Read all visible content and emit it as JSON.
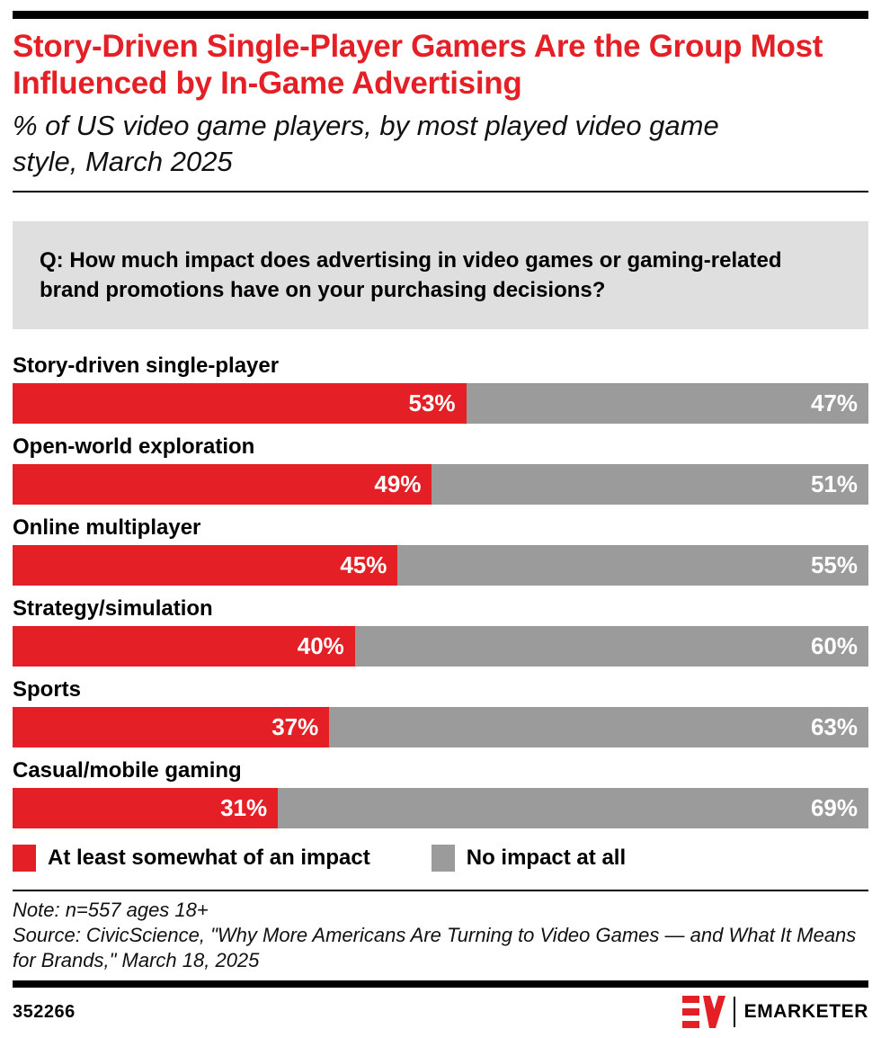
{
  "colors": {
    "accent_red": "#e41f26",
    "bar_gray": "#9b9b9b",
    "question_box_bg": "#dfdfdf",
    "text_black": "#000000"
  },
  "header": {
    "title": "Story-Driven Single-Player Gamers Are the Group Most Influenced by In-Game Advertising",
    "subtitle": "% of US video game players, by most played video game style, March 2025"
  },
  "question": "Q: How much impact does advertising in video games or gaming-related brand promotions have on your purchasing decisions?",
  "chart_data": {
    "type": "bar",
    "orientation": "horizontal",
    "stacked": true,
    "value_suffix": "%",
    "xlim": [
      0,
      100
    ],
    "grid": false,
    "legend_position": "bottom",
    "categories": [
      "Story-driven single-player",
      "Open-world exploration",
      "Online multiplayer",
      "Strategy/simulation",
      "Sports",
      "Casual/mobile gaming"
    ],
    "series": [
      {
        "name": "At least somewhat of an impact",
        "color": "#e41f26",
        "values": [
          53,
          49,
          45,
          40,
          37,
          31
        ]
      },
      {
        "name": "No impact at all",
        "color": "#9b9b9b",
        "values": [
          47,
          51,
          55,
          60,
          63,
          69
        ]
      }
    ]
  },
  "legend": [
    {
      "label": "At least somewhat of an impact",
      "color": "#e41f26"
    },
    {
      "label": "No impact at all",
      "color": "#9b9b9b"
    }
  ],
  "footnotes": {
    "note": "Note: n=557 ages 18+",
    "source": "Source: CivicScience, \"Why More Americans Are Turning to Video Games — and What It Means for Brands,\" March 18, 2025"
  },
  "footer": {
    "chart_id": "352266",
    "brand": "EMARKETER"
  }
}
